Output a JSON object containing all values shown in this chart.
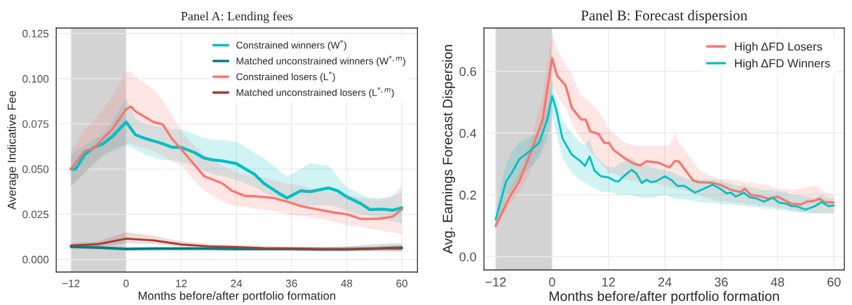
{
  "chart_data": [
    {
      "type": "line",
      "title": "Panel A: Lending fees",
      "xlabel": "Months before/after portfolio formation",
      "ylabel": "Average Indicative Fee",
      "xlim": [
        -15.2,
        63.4
      ],
      "ylim": [
        -0.007,
        0.128
      ],
      "xticks": [
        {
          "value": -12,
          "label": "−12"
        },
        0,
        12,
        24,
        36,
        48,
        60
      ],
      "yticks": [
        {
          "value": 0,
          "label": "0.000"
        },
        {
          "value": 0.025,
          "label": "0.025"
        },
        {
          "value": 0.05,
          "label": "0.050"
        },
        {
          "value": 0.075,
          "label": "0.075"
        },
        {
          "value": 0.1,
          "label": "0.100"
        },
        {
          "value": 0.125,
          "label": "0.125"
        }
      ],
      "grid": true,
      "legend": "top right",
      "bands": [
        {
          "axis": "x",
          "from": -12,
          "to": 0,
          "color": "#d3d3d3"
        }
      ],
      "series": [
        {
          "name": "Constrained winners (W$^{*}$)",
          "color": "#00bfc4",
          "x": [
            -12,
            -11,
            -9,
            -7,
            -5,
            -3,
            0,
            2,
            4,
            8,
            10,
            12,
            15,
            17,
            19,
            21,
            24,
            26,
            28,
            30,
            33,
            35,
            38,
            40,
            44,
            46,
            48,
            51,
            53,
            56,
            58,
            60
          ],
          "values": [
            0.05,
            0.05,
            0.058,
            0.062,
            0.064,
            0.068,
            0.076,
            0.069,
            0.067,
            0.064,
            0.062,
            0.062,
            0.059,
            0.056,
            0.055,
            0.0545,
            0.053,
            0.05,
            0.047,
            0.042,
            0.037,
            0.034,
            0.038,
            0.0375,
            0.0395,
            0.038,
            0.0346,
            0.031,
            0.0276,
            0.0278,
            0.0272,
            0.0285
          ],
          "lower": [
            0.041,
            0.043,
            0.048,
            0.053,
            0.057,
            0.06,
            0.063,
            0.061,
            0.058,
            0.055,
            0.055,
            0.054,
            0.051,
            0.049,
            0.047,
            0.046,
            0.044,
            0.042,
            0.04,
            0.037,
            0.034,
            0.031,
            0.03,
            0.03,
            0.03,
            0.029,
            0.027,
            0.025,
            0.024,
            0.022,
            0.021,
            0.02
          ],
          "upper": [
            0.058,
            0.06,
            0.063,
            0.066,
            0.07,
            0.076,
            0.089,
            0.078,
            0.075,
            0.073,
            0.072,
            0.072,
            0.069,
            0.067,
            0.066,
            0.066,
            0.065,
            0.062,
            0.059,
            0.056,
            0.05,
            0.046,
            0.05,
            0.053,
            0.052,
            0.046,
            0.04,
            0.036,
            0.034,
            0.034,
            0.035,
            0.037
          ]
        },
        {
          "name": "Matched unconstrained winners (W$^{*,m}$)",
          "color": "#0b7c80",
          "x": [
            -12,
            -6,
            0,
            6,
            12,
            18,
            24,
            30,
            36,
            42,
            48,
            54,
            60
          ],
          "values": [
            0.007,
            0.0065,
            0.0058,
            0.006,
            0.006,
            0.006,
            0.0058,
            0.0058,
            0.0058,
            0.0056,
            0.0056,
            0.006,
            0.0065
          ],
          "lower": [
            0.0058,
            0.0055,
            0.0049,
            0.005,
            0.005,
            0.005,
            0.0048,
            0.0048,
            0.0047,
            0.0045,
            0.0044,
            0.0045,
            0.0045
          ],
          "upper": [
            0.0082,
            0.0076,
            0.0068,
            0.007,
            0.007,
            0.007,
            0.0068,
            0.0068,
            0.007,
            0.0069,
            0.0072,
            0.0085,
            0.009
          ]
        },
        {
          "name": "Constrained losers (L$^{*}$)",
          "color": "#f8766d",
          "x": [
            -12,
            -9,
            -7,
            -5,
            -3,
            0,
            1,
            2,
            6,
            8,
            10,
            12,
            14,
            17,
            19,
            21,
            23,
            26,
            28,
            32,
            35,
            38,
            41,
            45,
            48,
            51,
            55,
            58,
            60
          ],
          "values": [
            0.05,
            0.06,
            0.0615,
            0.067,
            0.072,
            0.083,
            0.0846,
            0.082,
            0.076,
            0.0746,
            0.0667,
            0.061,
            0.055,
            0.046,
            0.044,
            0.042,
            0.038,
            0.035,
            0.035,
            0.034,
            0.032,
            0.0295,
            0.028,
            0.026,
            0.025,
            0.0224,
            0.0224,
            0.0237,
            0.0276
          ],
          "lower": [
            0.04,
            0.048,
            0.053,
            0.058,
            0.061,
            0.064,
            0.064,
            0.063,
            0.06,
            0.057,
            0.054,
            0.052,
            0.046,
            0.038,
            0.035,
            0.032,
            0.03,
            0.029,
            0.028,
            0.027,
            0.025,
            0.024,
            0.023,
            0.021,
            0.019,
            0.018,
            0.016,
            0.015,
            0.014
          ],
          "upper": [
            0.06,
            0.072,
            0.077,
            0.083,
            0.09,
            0.104,
            0.104,
            0.101,
            0.094,
            0.088,
            0.08,
            0.071,
            0.065,
            0.058,
            0.055,
            0.052,
            0.049,
            0.047,
            0.046,
            0.044,
            0.042,
            0.041,
            0.039,
            0.037,
            0.036,
            0.034,
            0.033,
            0.035,
            0.041
          ]
        },
        {
          "name": "Matched unconstrained losers (L$^{*,m}$)",
          "color": "#a63a33",
          "x": [
            -12,
            -6,
            0,
            6,
            12,
            18,
            24,
            30,
            36,
            42,
            48,
            54,
            60
          ],
          "values": [
            0.0077,
            0.0085,
            0.0115,
            0.0105,
            0.0083,
            0.0072,
            0.0068,
            0.0062,
            0.006,
            0.0058,
            0.0058,
            0.006,
            0.006
          ],
          "lower": [
            0.0065,
            0.007,
            0.009,
            0.0085,
            0.007,
            0.006,
            0.0055,
            0.005,
            0.005,
            0.0048,
            0.0048,
            0.0048,
            0.0045
          ],
          "upper": [
            0.009,
            0.01,
            0.015,
            0.013,
            0.01,
            0.0085,
            0.008,
            0.0075,
            0.007,
            0.007,
            0.007,
            0.0075,
            0.008
          ]
        }
      ]
    },
    {
      "type": "line",
      "title": "Panel B: Forecast dispersion",
      "xlabel": "Months before/after portfolio formation",
      "ylabel": "Avg. Earnings Forecast Dispersion",
      "xlim": [
        -14.5,
        62.2
      ],
      "ylim": [
        -0.043,
        0.74
      ],
      "xticks": [
        {
          "value": -12,
          "label": "−12"
        },
        0,
        12,
        24,
        36,
        48,
        60
      ],
      "yticks": [
        {
          "value": 0,
          "label": "0.0"
        },
        0.2,
        0.4,
        0.6
      ],
      "grid": true,
      "legend": "top right",
      "bands": [
        {
          "axis": "x",
          "from": -12,
          "to": 0,
          "color": "#d3d3d3"
        }
      ],
      "series": [
        {
          "name": "High ΔFD Losers",
          "color": "#f8766d",
          "x": [
            -12,
            -9,
            -7,
            -4.5,
            -2,
            0,
            1.1,
            2.9,
            4.2,
            6.2,
            7.2,
            8.1,
            9.9,
            11.1,
            12.1,
            13.1,
            15.4,
            17.4,
            18.8,
            20.1,
            22.6,
            25,
            26.2,
            27,
            30,
            31.2,
            34.1,
            35.9,
            38.1,
            40.1,
            41,
            42.3,
            44,
            46,
            48,
            49.7,
            51,
            53,
            54.2,
            55.9,
            56.9,
            57.9,
            59.9
          ],
          "values": [
            0.1,
            0.194,
            0.243,
            0.338,
            0.444,
            0.642,
            0.585,
            0.554,
            0.482,
            0.444,
            0.443,
            0.406,
            0.397,
            0.368,
            0.368,
            0.345,
            0.319,
            0.301,
            0.295,
            0.309,
            0.304,
            0.289,
            0.31,
            0.308,
            0.247,
            0.241,
            0.239,
            0.232,
            0.216,
            0.209,
            0.22,
            0.2,
            0.196,
            0.188,
            0.194,
            0.181,
            0.171,
            0.169,
            0.178,
            0.181,
            0.188,
            0.177,
            0.175
          ],
          "lower": [
            0.09,
            0.17,
            0.21,
            0.28,
            0.36,
            0.56,
            0.52,
            0.48,
            0.43,
            0.38,
            0.36,
            0.34,
            0.31,
            0.29,
            0.27,
            0.27,
            0.25,
            0.245,
            0.24,
            0.24,
            0.235,
            0.225,
            0.22,
            0.22,
            0.205,
            0.2,
            0.185,
            0.18,
            0.175,
            0.175,
            0.17,
            0.17,
            0.165,
            0.165,
            0.16,
            0.155,
            0.15,
            0.145,
            0.145,
            0.14,
            0.14,
            0.14,
            0.14
          ],
          "upper": [
            0.11,
            0.22,
            0.27,
            0.38,
            0.52,
            0.72,
            0.67,
            0.62,
            0.59,
            0.52,
            0.51,
            0.5,
            0.47,
            0.44,
            0.41,
            0.4,
            0.37,
            0.36,
            0.36,
            0.36,
            0.36,
            0.36,
            0.4,
            0.37,
            0.31,
            0.28,
            0.26,
            0.25,
            0.25,
            0.245,
            0.24,
            0.24,
            0.235,
            0.23,
            0.22,
            0.22,
            0.215,
            0.22,
            0.225,
            0.23,
            0.22,
            0.21,
            0.2
          ]
        },
        {
          "name": "High ΔFD Winners",
          "color": "#00bfc4",
          "x": [
            -12,
            -11,
            -9.8,
            -8.5,
            -7,
            -4.5,
            -2.8,
            -1,
            0,
            0.9,
            2.2,
            4.2,
            5.9,
            7,
            8,
            9,
            10.4,
            11.9,
            13.4,
            14.1,
            15.4,
            16.9,
            17.9,
            19.1,
            20.1,
            21.1,
            22.3,
            24,
            25.5,
            26.7,
            28.2,
            30.4,
            32.2,
            34.1,
            35.9,
            37.1,
            38.1,
            39.1,
            40.8,
            42.1,
            43.6,
            45,
            47,
            48.3,
            49.7,
            51,
            52,
            53.9,
            55.9,
            57.4,
            58.9,
            60
          ],
          "values": [
            0.12,
            0.175,
            0.243,
            0.273,
            0.315,
            0.345,
            0.368,
            0.444,
            0.52,
            0.475,
            0.383,
            0.33,
            0.311,
            0.294,
            0.324,
            0.279,
            0.26,
            0.257,
            0.245,
            0.243,
            0.262,
            0.281,
            0.27,
            0.238,
            0.249,
            0.241,
            0.245,
            0.26,
            0.247,
            0.229,
            0.229,
            0.207,
            0.219,
            0.233,
            0.219,
            0.205,
            0.207,
            0.194,
            0.207,
            0.192,
            0.188,
            0.178,
            0.19,
            0.175,
            0.172,
            0.163,
            0.163,
            0.152,
            0.163,
            0.177,
            0.163,
            0.166
          ],
          "lower": [
            0.11,
            0.14,
            0.19,
            0.22,
            0.25,
            0.29,
            0.32,
            0.38,
            0.46,
            0.4,
            0.32,
            0.27,
            0.25,
            0.24,
            0.23,
            0.22,
            0.21,
            0.21,
            0.205,
            0.2,
            0.2,
            0.2,
            0.195,
            0.19,
            0.19,
            0.19,
            0.195,
            0.2,
            0.19,
            0.185,
            0.185,
            0.18,
            0.175,
            0.175,
            0.17,
            0.17,
            0.17,
            0.165,
            0.165,
            0.16,
            0.16,
            0.155,
            0.155,
            0.15,
            0.15,
            0.145,
            0.145,
            0.14,
            0.14,
            0.14,
            0.14,
            0.14
          ],
          "upper": [
            0.13,
            0.22,
            0.3,
            0.34,
            0.37,
            0.39,
            0.4,
            0.48,
            0.57,
            0.51,
            0.44,
            0.4,
            0.37,
            0.36,
            0.38,
            0.33,
            0.31,
            0.29,
            0.29,
            0.3,
            0.31,
            0.32,
            0.31,
            0.29,
            0.3,
            0.29,
            0.285,
            0.28,
            0.275,
            0.265,
            0.255,
            0.25,
            0.25,
            0.25,
            0.245,
            0.24,
            0.235,
            0.23,
            0.23,
            0.225,
            0.22,
            0.215,
            0.215,
            0.21,
            0.21,
            0.2,
            0.2,
            0.195,
            0.19,
            0.2,
            0.19,
            0.19
          ]
        }
      ]
    }
  ]
}
